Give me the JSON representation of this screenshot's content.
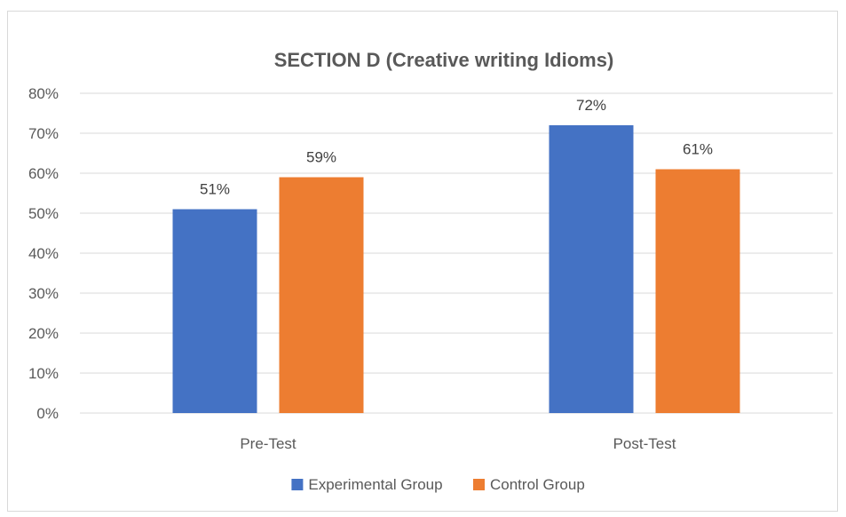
{
  "chart_data": {
    "type": "bar",
    "title": "SECTION D (Creative writing Idioms)",
    "categories": [
      "Pre-Test",
      "Post-Test"
    ],
    "series": [
      {
        "name": "Experimental Group",
        "color": "#4472c4",
        "values": [
          51,
          72
        ],
        "labels": [
          "51%",
          "72%"
        ]
      },
      {
        "name": "Control Group",
        "color": "#ed7d31",
        "values": [
          59,
          61
        ],
        "labels": [
          "59%",
          "61%"
        ]
      }
    ],
    "ylim": [
      0,
      80
    ],
    "y_ticks": [
      "0%",
      "10%",
      "20%",
      "30%",
      "40%",
      "50%",
      "60%",
      "70%",
      "80%"
    ],
    "y_unit": "%",
    "grid": true,
    "legend_position": "bottom",
    "gridline_color": "#d9d9d9",
    "text_color": "#595959"
  }
}
